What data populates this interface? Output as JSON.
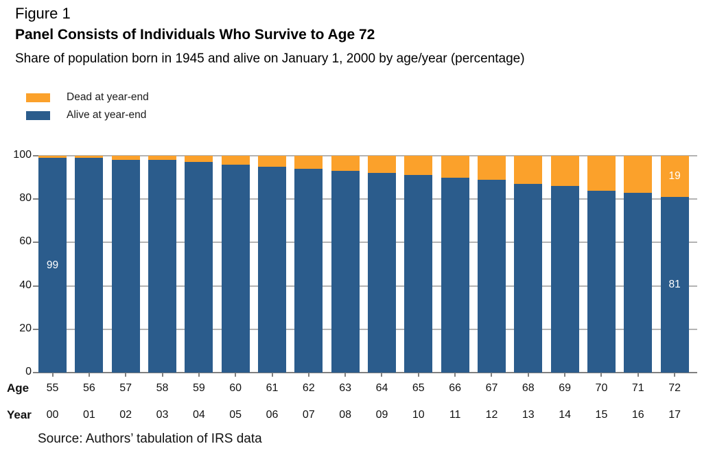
{
  "figure": {
    "label": "Figure 1",
    "title": "Panel Consists of Individuals Who Survive to Age 72",
    "subtitle": "Share of population born in 1945 and alive on January 1, 2000 by age/year (percentage)",
    "source": "Source: Authors’ tabulation of IRS data"
  },
  "chart_data": {
    "type": "bar",
    "stacked": true,
    "title": "Panel Consists of Individuals Who Survive to Age 72",
    "subtitle": "Share of population born in 1945 and alive on January 1, 2000 by age/year (percentage)",
    "ylim": [
      0,
      100
    ],
    "yticks": [
      0,
      20,
      40,
      60,
      80,
      100
    ],
    "grid": true,
    "legend_position": "top-left",
    "x_axis": {
      "age_label": "Age",
      "year_label": "Year",
      "ages": [
        "55",
        "56",
        "57",
        "58",
        "59",
        "60",
        "61",
        "62",
        "63",
        "64",
        "65",
        "66",
        "67",
        "68",
        "69",
        "70",
        "71",
        "72"
      ],
      "years": [
        "00",
        "01",
        "02",
        "03",
        "04",
        "05",
        "06",
        "07",
        "08",
        "09",
        "10",
        "11",
        "12",
        "13",
        "14",
        "15",
        "16",
        "17"
      ]
    },
    "series": [
      {
        "name": "Alive at year-end",
        "color": "#2B5C8C",
        "values": [
          99,
          99,
          98,
          98,
          97,
          96,
          95,
          94,
          93,
          92,
          91,
          90,
          89,
          87,
          86,
          84,
          83,
          81
        ]
      },
      {
        "name": "Dead at year-end",
        "color": "#FBA12B",
        "values": [
          1,
          1,
          2,
          2,
          3,
          4,
          5,
          6,
          7,
          8,
          9,
          10,
          11,
          13,
          14,
          16,
          17,
          19
        ]
      }
    ],
    "segment_labels": [
      {
        "bar_index": 0,
        "series": "alive",
        "text": "99"
      },
      {
        "bar_index": 17,
        "series": "dead",
        "text": "19"
      },
      {
        "bar_index": 17,
        "series": "alive",
        "text": "81"
      }
    ],
    "legend": [
      {
        "label": "Dead at year-end",
        "color": "#FBA12B"
      },
      {
        "label": "Alive at year-end",
        "color": "#2B5C8C"
      }
    ],
    "colors": {
      "alive": "#2B5C8C",
      "dead": "#FBA12B",
      "gridline": "#B3B3B3",
      "axis": "#808080",
      "bar_label": "#FFFFFF",
      "text": "#000000"
    }
  }
}
